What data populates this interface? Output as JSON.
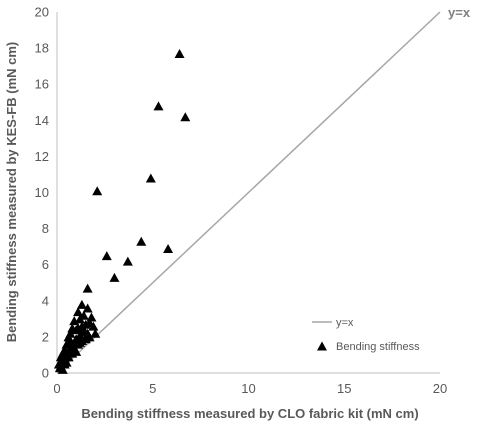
{
  "chart_data": {
    "type": "scatter",
    "xlabel": "Bending stiffness measured by CLO fabric kit (mN cm)",
    "ylabel": "Bending stiffness measured by KES-FB (mN cm)",
    "xlim": [
      0,
      20
    ],
    "ylim": [
      0,
      20
    ],
    "x_ticks": [
      "0",
      "5",
      "10",
      "15",
      "20"
    ],
    "y_ticks": [
      "0",
      "2",
      "4",
      "6",
      "8",
      "10",
      "12",
      "14",
      "16",
      "18",
      "20"
    ],
    "grid": false,
    "legend_position": "bottom-right",
    "colors": {
      "reference_line": "#a6a6a6",
      "markers": "#000000",
      "axis": "#bfbfbf",
      "text": "#595959"
    },
    "annotations": [
      {
        "text": "y=x",
        "x": 20,
        "y": 20
      }
    ],
    "series": [
      {
        "name": "y=x",
        "kind": "line",
        "x": [
          0,
          20
        ],
        "y": [
          0,
          20
        ]
      },
      {
        "name": "Bending stiffness",
        "kind": "scatter",
        "marker": "triangle",
        "x": [
          6.4,
          5.3,
          6.7,
          4.9,
          2.1,
          4.4,
          2.6,
          3.7,
          5.8,
          3.0,
          1.6,
          1.3,
          1.6,
          1.1,
          1.8,
          1.4,
          1.2,
          1.7,
          0.9,
          1.5,
          1.3,
          0.8,
          1.0,
          1.4,
          0.7,
          1.2,
          1.6,
          0.6,
          1.0,
          1.3,
          0.9,
          0.5,
          0.8,
          1.1,
          0.7,
          0.4,
          0.6,
          0.9,
          0.3,
          0.5,
          0.8,
          0.2,
          0.4,
          0.6,
          0.3,
          0.5,
          0.1,
          0.2,
          0.4,
          0.15,
          0.3,
          1.9,
          2.0,
          1.7,
          1.5,
          1.1,
          0.7,
          0.9,
          1.2,
          1.0,
          0.6,
          1.4
        ],
        "y": [
          17.7,
          14.8,
          14.2,
          10.8,
          10.1,
          7.3,
          6.5,
          6.2,
          6.9,
          5.3,
          4.7,
          3.8,
          3.6,
          3.4,
          3.1,
          3.2,
          3.0,
          2.8,
          2.9,
          2.7,
          2.6,
          2.5,
          2.4,
          2.3,
          2.2,
          2.1,
          2.2,
          2.0,
          1.9,
          1.8,
          1.7,
          1.6,
          1.5,
          1.6,
          1.4,
          1.3,
          1.2,
          1.3,
          1.1,
          1.0,
          1.1,
          0.9,
          0.8,
          0.9,
          0.7,
          0.6,
          0.5,
          0.4,
          0.5,
          0.3,
          0.2,
          2.6,
          2.2,
          2.0,
          1.9,
          2.5,
          1.8,
          1.4,
          1.7,
          1.2,
          0.9,
          2.4
        ]
      }
    ]
  }
}
